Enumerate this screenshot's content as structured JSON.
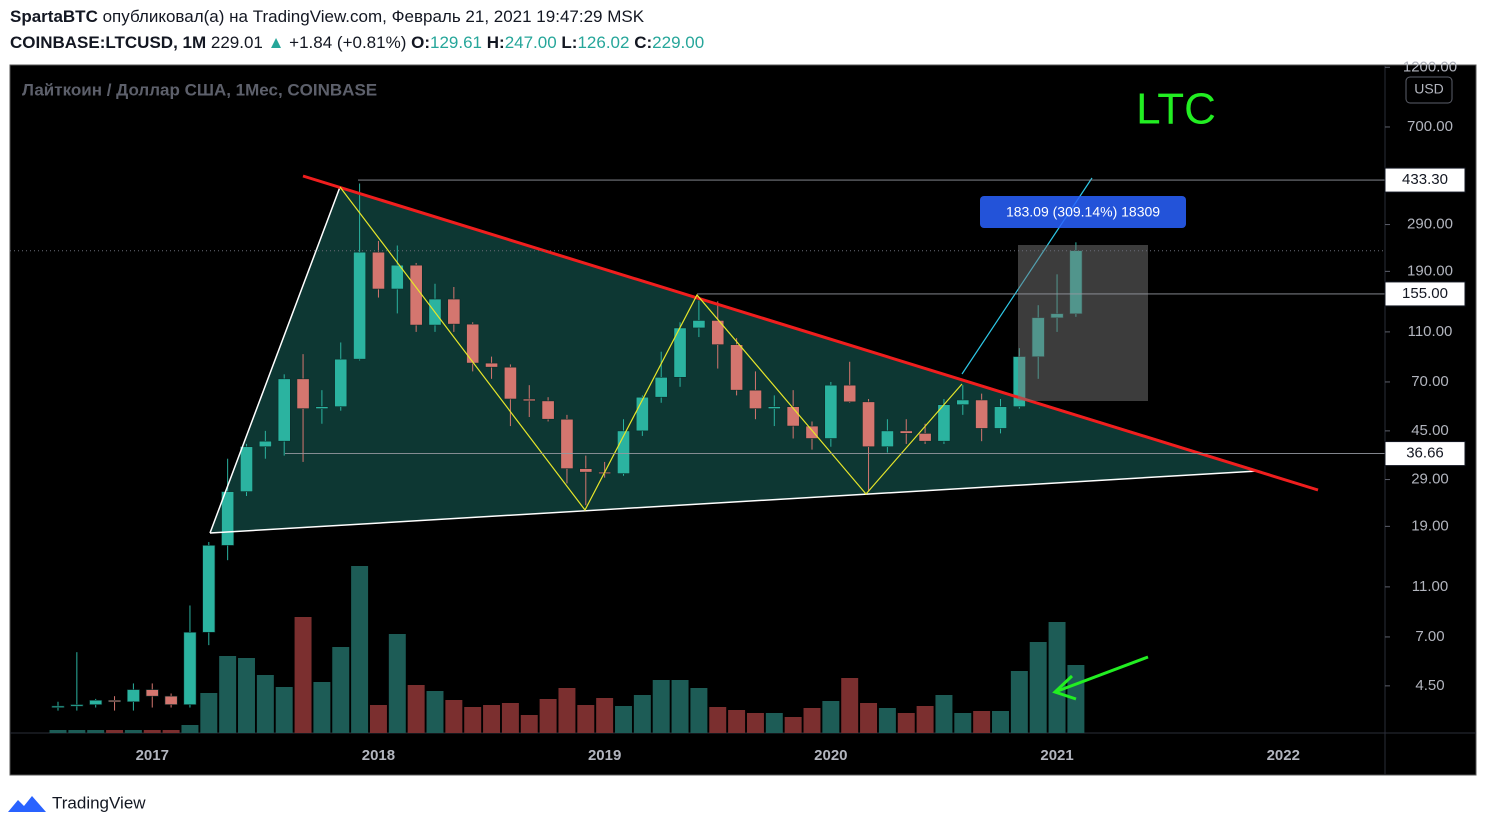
{
  "header": {
    "author": "SpartaBTC",
    "published": "опубликовал(а) на TradingView.com, Февраль 21, 2021 19:47:29 MSK",
    "symbol": "COINBASE:LTCUSD, 1M",
    "last": "229.01",
    "arrow": "▲",
    "change": "+1.84 (+0.81%)",
    "ohlc": [
      {
        "label": "O:",
        "value": "129.61"
      },
      {
        "label": "H:",
        "value": "247.00"
      },
      {
        "label": "L:",
        "value": "126.02"
      },
      {
        "label": "C:",
        "value": "229.00"
      }
    ]
  },
  "chart_data": {
    "type": "candlestick",
    "title": "Лайткоин / Доллар США, 1Мес, COINBASE",
    "annotation": "LTC",
    "currency": "USD",
    "measure_label": "183.09 (309.14%) 18309",
    "categories": [
      null,
      null,
      null,
      null,
      null,
      "2017",
      null,
      null,
      null,
      null,
      null,
      null,
      null,
      null,
      null,
      null,
      null,
      "2018",
      null,
      null,
      null,
      null,
      null,
      null,
      null,
      null,
      null,
      null,
      null,
      "2019",
      null,
      null,
      null,
      null,
      null,
      null,
      null,
      null,
      null,
      null,
      null,
      "2020",
      null,
      null,
      null,
      null,
      null,
      null,
      null,
      null,
      null,
      null,
      null,
      "2021",
      null,
      null,
      null,
      null,
      null,
      null,
      null,
      null,
      null,
      null,
      null,
      "2022",
      null,
      null,
      null,
      null,
      null
    ],
    "open": [
      3.74,
      3.75,
      3.8,
      3.95,
      3.9,
      4.35,
      4.1,
      3.8,
      7.3,
      16,
      26,
      39,
      41,
      72,
      55,
      56,
      86,
      226,
      162,
      201,
      117,
      148,
      118,
      83,
      80,
      60,
      59,
      50,
      32,
      31,
      30.6,
      45,
      61,
      73,
      114,
      122,
      98,
      65,
      55,
      56,
      47,
      42,
      68,
      58.5,
      39,
      45,
      44,
      41,
      57,
      59.5,
      46,
      56,
      88,
      125,
      129.61,
      null,
      null,
      null,
      null,
      null,
      null,
      null,
      null,
      null,
      null,
      null,
      null,
      null,
      null,
      null,
      null
    ],
    "high": [
      3.9,
      6.1,
      4.0,
      4.1,
      4.6,
      4.6,
      4.2,
      9.3,
      16.5,
      35,
      40,
      45,
      75,
      90,
      65,
      100,
      420,
      250,
      240,
      205,
      170,
      165,
      120,
      88,
      82,
      68,
      61,
      52,
      36,
      34,
      50,
      62,
      92,
      120,
      146,
      145,
      104,
      77,
      62,
      65,
      49,
      70,
      84,
      60,
      50,
      50,
      48,
      60,
      68,
      63,
      60,
      95,
      140,
      185,
      247,
      null,
      null,
      null,
      null,
      null,
      null,
      null,
      null,
      null,
      null,
      null,
      null,
      null,
      null,
      null,
      null
    ],
    "low": [
      3.6,
      3.6,
      3.7,
      3.6,
      3.6,
      3.7,
      3.7,
      3.7,
      6.5,
      14,
      25,
      35,
      36,
      34,
      48,
      54,
      85,
      150,
      130,
      110,
      110,
      110,
      77,
      72,
      47,
      51,
      49,
      28,
      23,
      29.5,
      30,
      43,
      58,
      67,
      105,
      79,
      62,
      50,
      47,
      42,
      38,
      39,
      58,
      26,
      37,
      40,
      40,
      40,
      52,
      41,
      44,
      55,
      72,
      110,
      126.02,
      null,
      null,
      null,
      null,
      null,
      null,
      null,
      null,
      null,
      null,
      null,
      null,
      null,
      null,
      null,
      null
    ],
    "close": [
      3.75,
      3.8,
      3.95,
      3.9,
      4.35,
      4.1,
      3.8,
      7.3,
      16,
      26,
      39,
      41,
      72,
      55,
      56,
      86,
      226,
      162,
      201,
      117,
      148,
      118,
      83,
      80,
      60,
      59,
      50,
      32,
      31,
      30.6,
      45,
      61,
      73,
      114,
      122,
      98,
      65,
      55,
      56,
      47,
      42,
      68,
      58.5,
      39,
      45,
      44,
      41,
      57,
      59.5,
      46,
      56,
      88,
      125,
      129.61,
      229.0,
      null,
      null,
      null,
      null,
      null,
      null,
      null,
      null,
      null,
      null,
      null,
      null,
      null,
      null,
      null,
      null
    ],
    "volume": [
      3,
      3,
      3,
      3,
      3,
      3,
      3,
      8,
      40,
      77,
      75,
      58,
      46,
      116,
      51,
      86,
      167,
      28,
      99,
      48,
      42,
      33,
      26,
      28,
      30,
      18,
      34,
      45,
      28,
      35,
      27,
      38,
      53,
      53,
      45,
      26,
      23,
      20,
      20,
      16,
      25,
      32,
      55,
      30,
      25,
      20,
      27,
      38,
      20,
      22,
      22,
      62,
      91,
      111,
      68,
      null,
      null,
      null,
      null,
      null,
      null,
      null,
      null,
      null,
      null,
      null,
      null,
      null,
      null,
      null,
      null
    ],
    "up_color": "#2bb3a0",
    "down_color": "#d4766f",
    "up_volume_color": "#1d5c56",
    "down_volume_color": "#7b2f2f",
    "log_scale": true,
    "grid": false,
    "ylim": [
      2.94,
      1225
    ],
    "yticks": [
      {
        "value": 1200,
        "label": "1200.00"
      },
      {
        "value": 700,
        "label": "700.00"
      },
      {
        "value": 290,
        "label": "290.00"
      },
      {
        "value": 190,
        "label": "190.00"
      },
      {
        "value": 110,
        "label": "110.00"
      },
      {
        "value": 70,
        "label": "70.00"
      },
      {
        "value": 45,
        "label": "45.00"
      },
      {
        "value": 29,
        "label": "29.00"
      },
      {
        "value": 19,
        "label": "19.00"
      },
      {
        "value": 11,
        "label": "11.00"
      },
      {
        "value": 7,
        "label": "7.00"
      },
      {
        "value": 4.5,
        "label": "4.50"
      }
    ],
    "price_lines": [
      {
        "value": 433.3,
        "label": "433.30"
      },
      {
        "value": 155,
        "label": "155.00"
      },
      {
        "value": 36.66,
        "label": "36.66"
      }
    ]
  },
  "footer": {
    "brand": "TradingView"
  }
}
